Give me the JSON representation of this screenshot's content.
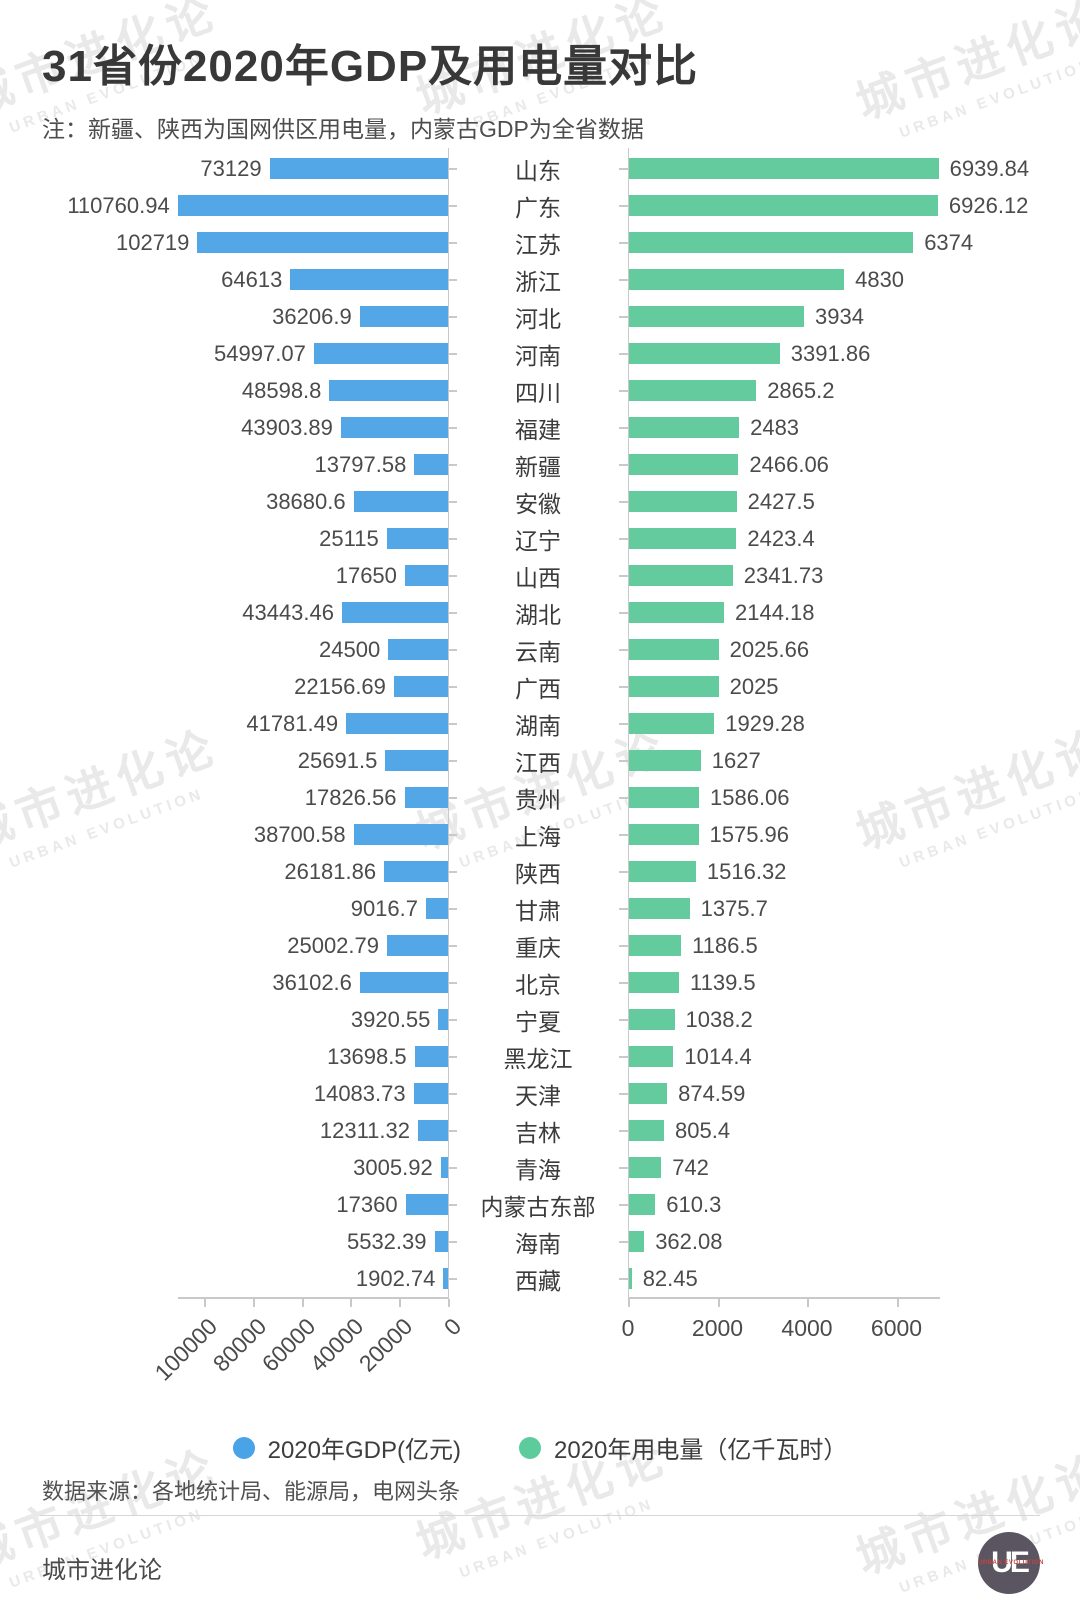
{
  "header": {
    "title": "31省份2020年GDP及用电量对比",
    "note": "注：新疆、陕西为国网供区用电量，内蒙古GDP为全省数据"
  },
  "chart_data": {
    "type": "bar",
    "layout": "diverging-horizontal",
    "left_series": "2020年GDP(亿元)",
    "right_series": "2020年用电量（亿千瓦时）",
    "left_color": "#54a7e6",
    "right_color": "#63cb9e",
    "left_axis": {
      "ticks": [
        100000,
        80000,
        60000,
        40000,
        20000,
        0
      ],
      "reversed": true,
      "max": 110760.94
    },
    "right_axis": {
      "ticks": [
        0,
        2000,
        4000,
        6000
      ],
      "max": 6939.84
    },
    "rows": [
      {
        "province": "山东",
        "gdp": 73129,
        "electricity": 6939.84
      },
      {
        "province": "广东",
        "gdp": 110760.94,
        "electricity": 6926.12
      },
      {
        "province": "江苏",
        "gdp": 102719,
        "electricity": 6374
      },
      {
        "province": "浙江",
        "gdp": 64613,
        "electricity": 4830
      },
      {
        "province": "河北",
        "gdp": 36206.9,
        "electricity": 3934
      },
      {
        "province": "河南",
        "gdp": 54997.07,
        "electricity": 3391.86
      },
      {
        "province": "四川",
        "gdp": 48598.8,
        "electricity": 2865.2
      },
      {
        "province": "福建",
        "gdp": 43903.89,
        "electricity": 2483
      },
      {
        "province": "新疆",
        "gdp": 13797.58,
        "electricity": 2466.06
      },
      {
        "province": "安徽",
        "gdp": 38680.6,
        "electricity": 2427.5
      },
      {
        "province": "辽宁",
        "gdp": 25115,
        "electricity": 2423.4
      },
      {
        "province": "山西",
        "gdp": 17650,
        "electricity": 2341.73
      },
      {
        "province": "湖北",
        "gdp": 43443.46,
        "electricity": 2144.18
      },
      {
        "province": "云南",
        "gdp": 24500,
        "electricity": 2025.66
      },
      {
        "province": "广西",
        "gdp": 22156.69,
        "electricity": 2025
      },
      {
        "province": "湖南",
        "gdp": 41781.49,
        "electricity": 1929.28
      },
      {
        "province": "江西",
        "gdp": 25691.5,
        "electricity": 1627
      },
      {
        "province": "贵州",
        "gdp": 17826.56,
        "electricity": 1586.06
      },
      {
        "province": "上海",
        "gdp": 38700.58,
        "electricity": 1575.96
      },
      {
        "province": "陕西",
        "gdp": 26181.86,
        "electricity": 1516.32
      },
      {
        "province": "甘肃",
        "gdp": 9016.7,
        "electricity": 1375.7
      },
      {
        "province": "重庆",
        "gdp": 25002.79,
        "electricity": 1186.5
      },
      {
        "province": "北京",
        "gdp": 36102.6,
        "electricity": 1139.5
      },
      {
        "province": "宁夏",
        "gdp": 3920.55,
        "electricity": 1038.2
      },
      {
        "province": "黑龙江",
        "gdp": 13698.5,
        "electricity": 1014.4
      },
      {
        "province": "天津",
        "gdp": 14083.73,
        "electricity": 874.59
      },
      {
        "province": "吉林",
        "gdp": 12311.32,
        "electricity": 805.4
      },
      {
        "province": "青海",
        "gdp": 3005.92,
        "electricity": 742
      },
      {
        "province": "内蒙古东部",
        "gdp": 17360,
        "electricity": 610.3
      },
      {
        "province": "海南",
        "gdp": 5532.39,
        "electricity": 362.08
      },
      {
        "province": "西藏",
        "gdp": 1902.74,
        "electricity": 82.45
      }
    ]
  },
  "legend": [
    {
      "label": "2020年GDP(亿元)",
      "color": "#4aa3e6"
    },
    {
      "label": "2020年用电量（亿千瓦时）",
      "color": "#5ecb9c"
    }
  ],
  "source": "数据来源：各地统计局、能源局，电网头条",
  "footer": {
    "brand": "城市进化论",
    "logo_text": "UE",
    "logo_sub": "URBAN EVOLUTION"
  },
  "watermark": {
    "text": "城市进化论",
    "subtext": "URBAN EVOLUTION"
  }
}
